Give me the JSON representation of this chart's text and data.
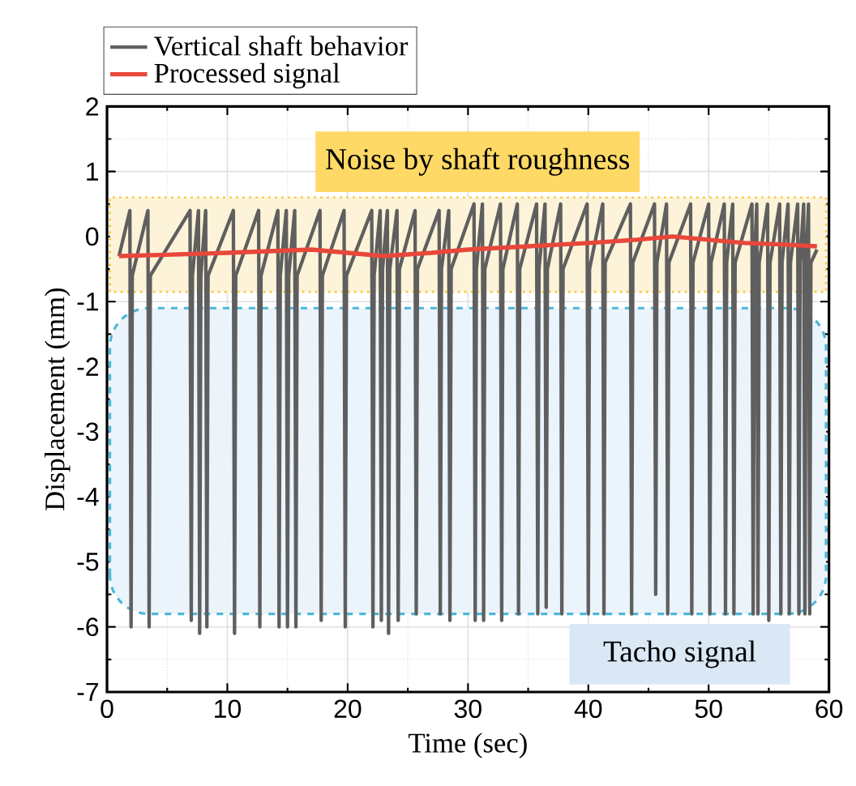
{
  "chart_data": {
    "type": "line",
    "xlabel": "Time (sec)",
    "ylabel": "Displacement (mm)",
    "xlim": [
      0,
      60
    ],
    "ylim": [
      -7,
      2
    ],
    "xticks": [
      0,
      10,
      20,
      30,
      40,
      50,
      60
    ],
    "yticks": [
      -7,
      -6,
      -5,
      -4,
      -3,
      -2,
      -1,
      0,
      1,
      2
    ],
    "grid": true,
    "legend": "top left",
    "bands": [
      {
        "axis": "y",
        "from": -0.85,
        "to": 0.6,
        "label": "Noise by shaft roughness",
        "color": "#fdf3d8"
      },
      {
        "axis": "y",
        "from": -5.8,
        "to": -1.1,
        "label": "Tacho signal",
        "color": "#ebf3fb"
      }
    ],
    "series": [
      {
        "name": "Vertical shaft behavior",
        "color": "#5f5f5f",
        "x": [
          1.0,
          1.9,
          2.0,
          2.1,
          3.4,
          3.5,
          3.6,
          6.9,
          7.0,
          7.1,
          7.6,
          7.7,
          7.8,
          8.2,
          8.3,
          8.4,
          10.5,
          10.6,
          10.7,
          12.6,
          12.7,
          12.8,
          14.2,
          14.3,
          14.4,
          14.9,
          15.0,
          15.1,
          15.6,
          15.7,
          15.8,
          17.7,
          17.8,
          17.9,
          19.7,
          19.8,
          19.9,
          22.0,
          22.1,
          22.2,
          22.7,
          22.8,
          22.9,
          23.3,
          23.4,
          23.5,
          24.1,
          24.2,
          24.3,
          25.6,
          25.7,
          25.8,
          27.6,
          27.7,
          27.8,
          28.4,
          28.5,
          28.6,
          30.5,
          30.6,
          30.7,
          31.2,
          31.3,
          31.4,
          32.7,
          32.8,
          32.9,
          34.1,
          34.2,
          34.3,
          35.7,
          35.8,
          35.9,
          36.4,
          36.5,
          36.6,
          37.7,
          37.8,
          37.9,
          39.9,
          40.0,
          40.1,
          41.2,
          41.3,
          41.4,
          43.5,
          43.6,
          43.7,
          45.5,
          45.6,
          45.7,
          46.5,
          46.6,
          46.7,
          48.5,
          48.6,
          48.7,
          50.0,
          50.1,
          50.2,
          51.3,
          51.4,
          51.5,
          52.0,
          52.1,
          52.2,
          53.6,
          53.7,
          53.8,
          54.0,
          54.1,
          54.2,
          54.9,
          55.0,
          55.1,
          55.9,
          56.0,
          56.1,
          56.6,
          56.7,
          56.8,
          57.4,
          57.5,
          57.6,
          57.9,
          58.0,
          58.1,
          58.3,
          58.4,
          58.5,
          59.0
        ],
        "values": [
          -0.3,
          0.4,
          -6.0,
          -0.6,
          0.4,
          -6.0,
          -0.6,
          0.4,
          -5.9,
          -0.6,
          0.4,
          -6.1,
          -0.6,
          0.4,
          -6.0,
          -0.6,
          0.4,
          -6.1,
          -0.6,
          0.4,
          -6.0,
          -0.6,
          0.4,
          -6.0,
          -0.6,
          0.4,
          -6.0,
          -0.6,
          0.4,
          -6.0,
          -0.6,
          0.4,
          -5.9,
          -0.6,
          0.4,
          -6.0,
          -0.6,
          0.4,
          -6.0,
          -0.6,
          0.4,
          -5.9,
          -0.5,
          0.4,
          -6.1,
          -0.5,
          0.4,
          -5.9,
          -0.5,
          0.4,
          -5.8,
          -0.5,
          0.4,
          -5.8,
          -0.5,
          0.4,
          -5.9,
          -0.5,
          0.5,
          -5.9,
          -0.5,
          0.5,
          -5.9,
          -0.5,
          0.5,
          -5.9,
          -0.5,
          0.5,
          -5.8,
          -0.5,
          0.5,
          -5.8,
          -0.5,
          0.5,
          -5.7,
          -0.5,
          0.5,
          -5.8,
          -0.5,
          0.5,
          -5.8,
          -0.5,
          0.5,
          -5.8,
          -0.4,
          0.5,
          -5.8,
          -0.4,
          0.5,
          -5.5,
          -0.4,
          0.5,
          -5.8,
          -0.4,
          0.5,
          -5.8,
          -0.4,
          0.5,
          -5.8,
          -0.4,
          0.5,
          -5.8,
          -0.4,
          0.5,
          -5.8,
          -0.4,
          0.5,
          -5.8,
          -0.4,
          0.5,
          -5.8,
          -0.4,
          0.5,
          -5.9,
          -0.4,
          0.5,
          -5.8,
          -0.4,
          0.5,
          -5.8,
          -0.4,
          0.5,
          -5.8,
          -0.4,
          0.5,
          -5.8,
          -0.4,
          0.5,
          -5.8,
          -0.4,
          -0.2
        ]
      },
      {
        "name": "Processed signal",
        "color": "#e8473b",
        "x": [
          1,
          5,
          10,
          17,
          23,
          27,
          30,
          35,
          40,
          44,
          47,
          50,
          53,
          56,
          59
        ],
        "values": [
          -0.3,
          -0.28,
          -0.25,
          -0.2,
          -0.3,
          -0.25,
          -0.2,
          -0.15,
          -0.1,
          -0.05,
          0.0,
          -0.05,
          -0.1,
          -0.12,
          -0.15
        ]
      }
    ]
  }
}
